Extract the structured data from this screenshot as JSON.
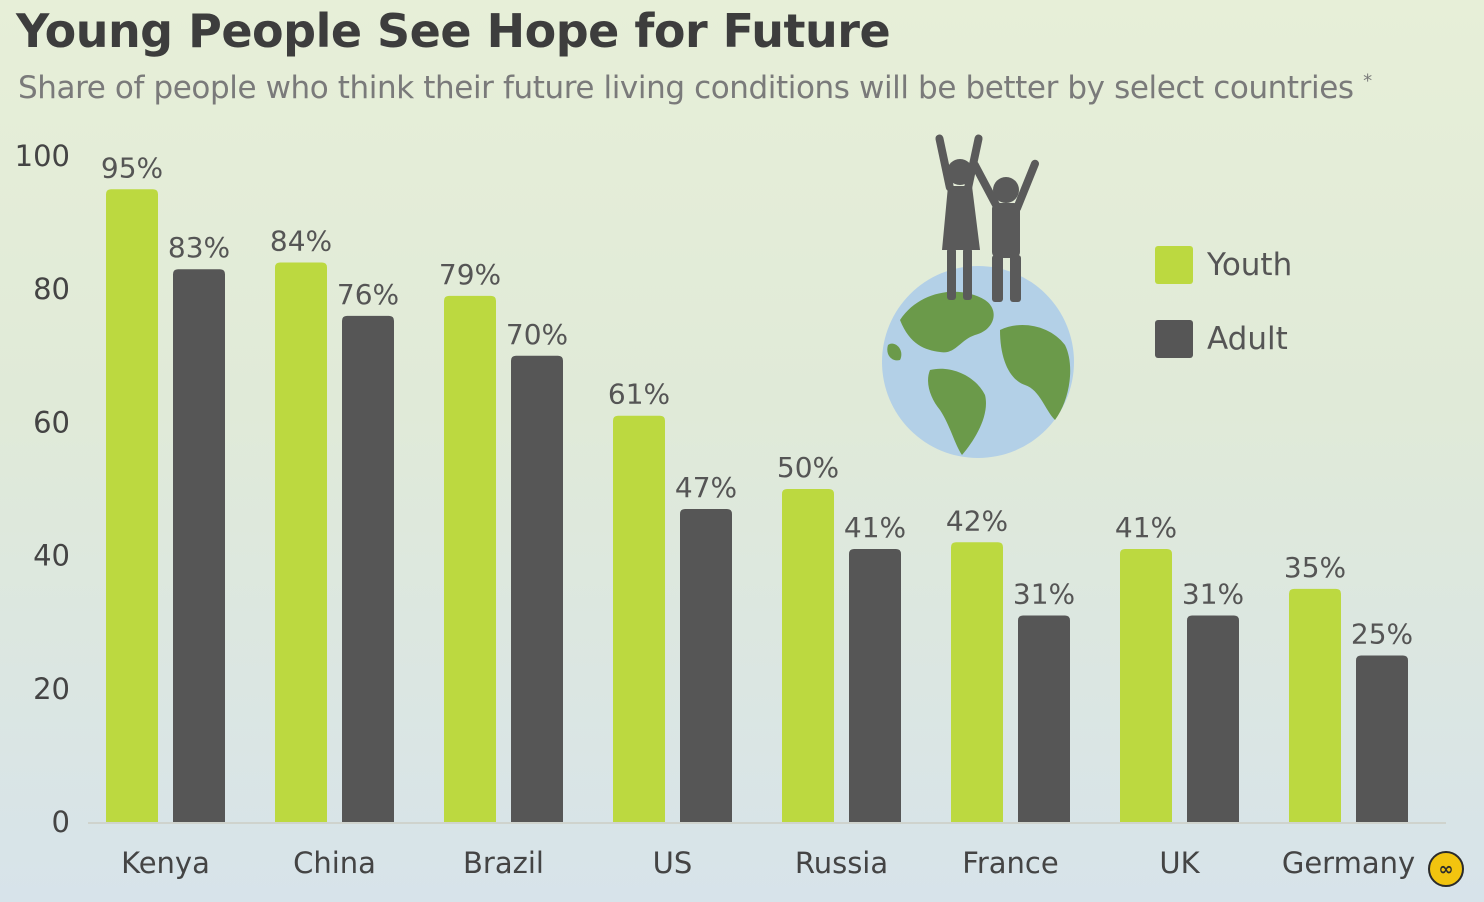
{
  "title": "Young People See Hope for Future",
  "subtitle": "Share of people who think their future living conditions will be better by select countries",
  "subtitle_mark": "*",
  "colors": {
    "youth": "#bcd940",
    "adult": "#565656",
    "axis_text": "#444444",
    "label_text": "#555555"
  },
  "legend": [
    {
      "label": "Youth",
      "color": "#bcd940"
    },
    {
      "label": "Adult",
      "color": "#565656"
    }
  ],
  "chart_data": {
    "type": "bar",
    "categories": [
      "Kenya",
      "China",
      "Brazil",
      "US",
      "Russia",
      "France",
      "UK",
      "Germany"
    ],
    "series": [
      {
        "name": "Youth",
        "values": [
          95,
          84,
          79,
          61,
          50,
          42,
          41,
          35
        ]
      },
      {
        "name": "Adult",
        "values": [
          83,
          76,
          70,
          47,
          41,
          31,
          31,
          25
        ]
      }
    ],
    "data_labels": [
      [
        "95%",
        "84%",
        "79%",
        "61%",
        "50%",
        "42%",
        "41%",
        "35%"
      ],
      [
        "83%",
        "76%",
        "70%",
        "47%",
        "41%",
        "31%",
        "31%",
        "25%"
      ]
    ],
    "y_ticks": [
      "0",
      "20",
      "40",
      "60",
      "80",
      "100"
    ],
    "ylim": [
      0,
      100
    ],
    "grid": false,
    "legend_position": "top-right"
  },
  "illustration": {
    "icon": "children-on-globe-icon"
  },
  "brand_icon": "statista-logo-icon"
}
